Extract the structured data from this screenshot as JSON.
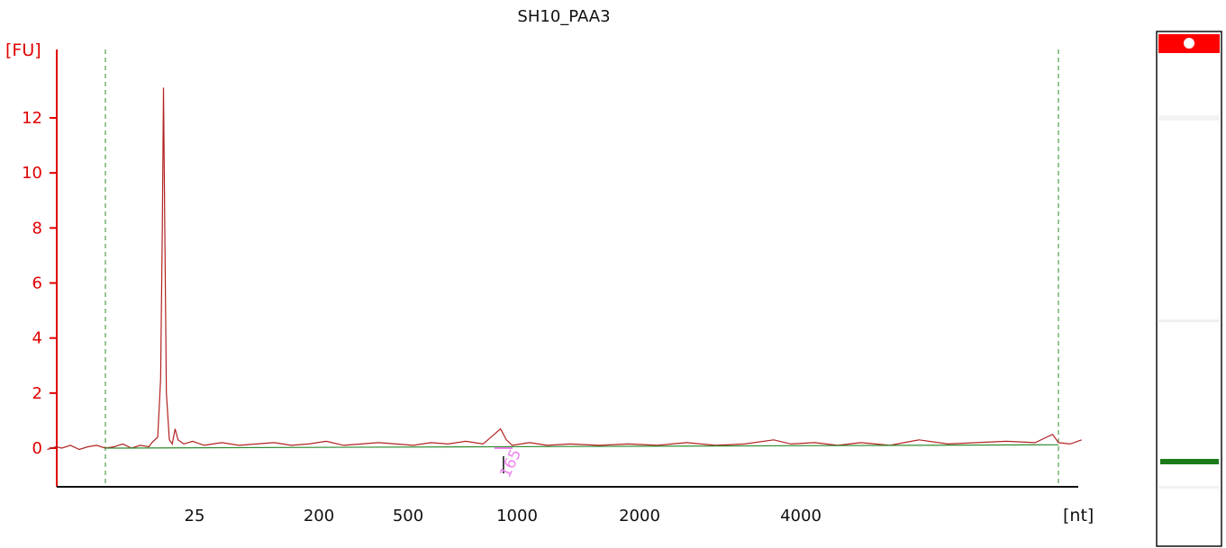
{
  "chart_data": {
    "type": "line",
    "title": "SH10_PAA3",
    "ylabel": "[FU]",
    "xlabel": "[nt]",
    "ylim": [
      -1.4,
      14.6
    ],
    "y_ticks": [
      0,
      2,
      4,
      6,
      8,
      10,
      12
    ],
    "x_ticks": [
      "25",
      "200",
      "500",
      "1000",
      "2000",
      "4000"
    ],
    "grid": false,
    "colors": {
      "signal": "#b22222",
      "baseline": "#2e8b2e",
      "axis": "#e00000",
      "marker": "#ee82ee",
      "gel_upper_marker": "#ff0000",
      "gel_lower_marker": "#1a7a1a"
    },
    "series": [
      {
        "values": [
          [
            -1.0,
            -0.05
          ],
          [
            -0.85,
            0.05
          ],
          [
            -0.75,
            0.0
          ],
          [
            -0.6,
            0.1
          ],
          [
            -0.45,
            -0.05
          ],
          [
            -0.3,
            0.05
          ],
          [
            -0.15,
            0.1
          ],
          [
            0.0,
            0.0
          ],
          [
            0.15,
            0.05
          ],
          [
            0.3,
            0.15
          ],
          [
            0.45,
            0.0
          ],
          [
            0.6,
            0.1
          ],
          [
            0.75,
            0.05
          ],
          [
            0.8,
            0.2
          ],
          [
            0.9,
            0.4
          ],
          [
            0.95,
            2.5
          ],
          [
            0.98,
            8.0
          ],
          [
            1.0,
            13.1
          ],
          [
            1.02,
            8.5
          ],
          [
            1.05,
            2.0
          ],
          [
            1.1,
            0.3
          ],
          [
            1.15,
            0.15
          ],
          [
            1.2,
            0.7
          ],
          [
            1.25,
            0.3
          ],
          [
            1.35,
            0.15
          ],
          [
            1.5,
            0.25
          ],
          [
            1.7,
            0.1
          ],
          [
            2.0,
            0.2
          ],
          [
            2.3,
            0.1
          ],
          [
            2.6,
            0.15
          ],
          [
            2.9,
            0.2
          ],
          [
            3.2,
            0.1
          ],
          [
            3.5,
            0.15
          ],
          [
            3.8,
            0.25
          ],
          [
            4.1,
            0.1
          ],
          [
            4.4,
            0.15
          ],
          [
            4.7,
            0.2
          ],
          [
            5.0,
            0.15
          ],
          [
            5.3,
            0.1
          ],
          [
            5.6,
            0.2
          ],
          [
            5.9,
            0.15
          ],
          [
            6.2,
            0.25
          ],
          [
            6.5,
            0.15
          ],
          [
            6.8,
            0.7
          ],
          [
            6.9,
            0.3
          ],
          [
            7.0,
            0.1
          ],
          [
            7.3,
            0.2
          ],
          [
            7.6,
            0.1
          ],
          [
            8.0,
            0.15
          ],
          [
            8.5,
            0.1
          ],
          [
            9.0,
            0.15
          ],
          [
            9.5,
            0.1
          ],
          [
            10.0,
            0.2
          ],
          [
            10.5,
            0.1
          ],
          [
            11.0,
            0.15
          ],
          [
            11.5,
            0.3
          ],
          [
            11.8,
            0.15
          ],
          [
            12.2,
            0.2
          ],
          [
            12.6,
            0.1
          ],
          [
            13.0,
            0.2
          ],
          [
            13.5,
            0.1
          ],
          [
            14.0,
            0.3
          ],
          [
            14.5,
            0.15
          ],
          [
            15.0,
            0.2
          ],
          [
            15.5,
            0.25
          ],
          [
            16.0,
            0.2
          ],
          [
            16.3,
            0.5
          ],
          [
            16.4,
            0.2
          ],
          [
            16.6,
            0.15
          ],
          [
            16.8,
            0.3
          ]
        ]
      },
      {
        "values": [
          [
            0.0,
            0.0
          ],
          [
            16.4,
            0.12
          ]
        ]
      }
    ],
    "marker_labels": [
      {
        "x": 6.85,
        "label": "165"
      }
    ],
    "dashed_bounds": [
      0.0,
      16.4
    ]
  }
}
